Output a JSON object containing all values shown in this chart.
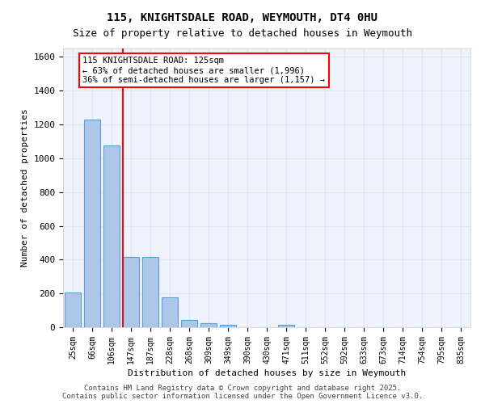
{
  "title1": "115, KNIGHTSDALE ROAD, WEYMOUTH, DT4 0HU",
  "title2": "Size of property relative to detached houses in Weymouth",
  "xlabel": "Distribution of detached houses by size in Weymouth",
  "ylabel": "Number of detached properties",
  "bar_labels": [
    "25sqm",
    "66sqm",
    "106sqm",
    "147sqm",
    "187sqm",
    "228sqm",
    "268sqm",
    "309sqm",
    "349sqm",
    "390sqm",
    "430sqm",
    "471sqm",
    "511sqm",
    "552sqm",
    "592sqm",
    "633sqm",
    "673sqm",
    "714sqm",
    "754sqm",
    "795sqm",
    "835sqm"
  ],
  "bar_values": [
    205,
    1230,
    1075,
    415,
    415,
    175,
    45,
    25,
    13,
    0,
    0,
    13,
    0,
    0,
    0,
    0,
    0,
    0,
    0,
    0,
    0
  ],
  "bar_color": "#aec6e8",
  "bar_edge_color": "#5a9fd4",
  "grid_color": "#dde8f5",
  "background_color": "#eef3fb",
  "vline_x": 2.6,
  "vline_color": "red",
  "annotation_box_text": "115 KNIGHTSDALE ROAD: 125sqm\n← 63% of detached houses are smaller (1,996)\n36% of semi-detached houses are larger (1,157) →",
  "ylim": [
    0,
    1650
  ],
  "yticks": [
    0,
    200,
    400,
    600,
    800,
    1000,
    1200,
    1400,
    1600
  ],
  "footnote": "Contains HM Land Registry data © Crown copyright and database right 2025.\nContains public sector information licensed under the Open Government Licence v3.0."
}
